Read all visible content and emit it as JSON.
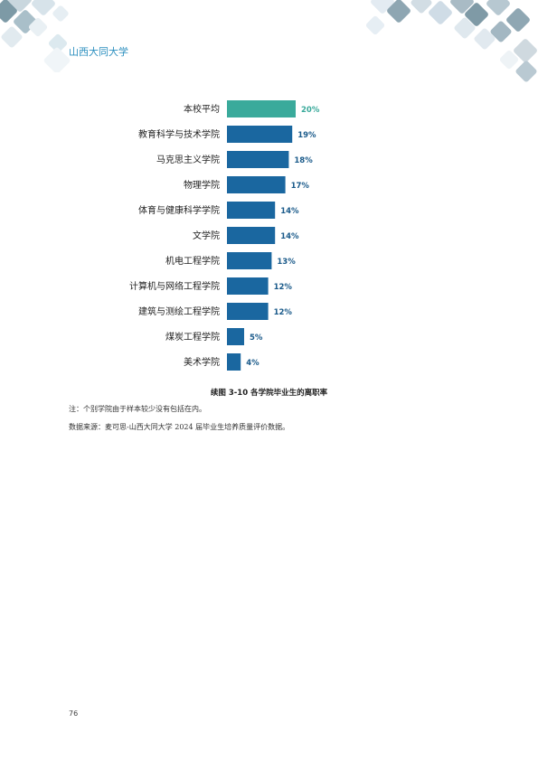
{
  "header": {
    "title": "山西大同大学"
  },
  "chart_data": {
    "type": "bar",
    "orientation": "horizontal",
    "categories": [
      "本校平均",
      "教育科学与技术学院",
      "马克思主义学院",
      "物理学院",
      "体育与健康科学学院",
      "文学院",
      "机电工程学院",
      "计算机与网络工程学院",
      "建筑与测绘工程学院",
      "煤炭工程学院",
      "美术学院"
    ],
    "values": [
      20,
      19,
      18,
      17,
      14,
      14,
      13,
      12,
      12,
      5,
      4
    ],
    "value_labels": [
      "20%",
      "19%",
      "18%",
      "17%",
      "14%",
      "14%",
      "13%",
      "12%",
      "12%",
      "5%",
      "4%"
    ],
    "highlight_index": 0,
    "colors": {
      "highlight": "#3aaa9b",
      "bar": "#1a67a0",
      "label": "#1a5a8a",
      "highlight_label": "#3aaa9b"
    }
  },
  "caption": "续图 3-10  各学院毕业生的离职率",
  "notes": [
    "注：个别学院由于样本较少没有包括在内。",
    "数据来源：麦可思-山西大同大学 2024 届毕业生培养质量评价数据。"
  ],
  "page_number": "76"
}
